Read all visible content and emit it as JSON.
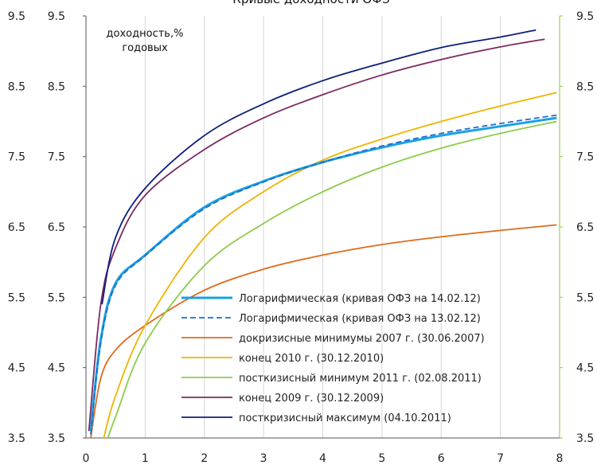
{
  "chart_data": {
    "type": "line",
    "title": "Кривые доходности ОФЗ",
    "y_unit_label_line1": "доходность,%",
    "y_unit_label_line2": "годовых",
    "xlim": [
      0,
      8
    ],
    "ylim": [
      3.5,
      9.5
    ],
    "x_ticks": [
      "0",
      "1",
      "2",
      "3",
      "4",
      "5",
      "6",
      "7",
      "8"
    ],
    "y_ticks_left": [
      "3.5",
      "4.5",
      "5.5",
      "6.5",
      "7.5",
      "8.5",
      "9.5"
    ],
    "y_ticks_right": [
      "3.5",
      "4.5",
      "5.5",
      "6.5",
      "7.5",
      "8.5",
      "9.5"
    ],
    "grid": "vertical",
    "legend_position": "bottom-right",
    "series": [
      {
        "name": "Логарифмическая (кривая ОФЗ на 14.02.12)",
        "color": "#1ba1e2",
        "style": "solid",
        "x": [
          0.08,
          0.25,
          0.5,
          1,
          2,
          3,
          4,
          5,
          6,
          7,
          7.95
        ],
        "y": [
          3.6,
          4.9,
          5.7,
          6.1,
          6.78,
          7.15,
          7.42,
          7.63,
          7.8,
          7.93,
          8.05
        ]
      },
      {
        "name": "Логарифмическая (кривая ОФЗ на 13.02.12)",
        "color": "#1a6fd0",
        "style": "dashed",
        "x": [
          0.08,
          0.25,
          0.5,
          1,
          2,
          3,
          4,
          5,
          6,
          7,
          7.95
        ],
        "y": [
          3.55,
          4.85,
          5.67,
          6.09,
          6.76,
          7.14,
          7.42,
          7.65,
          7.83,
          7.97,
          8.09
        ]
      },
      {
        "name": "докризисные минимумы 2007 г. (30.06.2007)",
        "color": "#e06a1b",
        "style": "solid",
        "x": [
          0.08,
          0.25,
          0.5,
          1,
          2,
          3,
          4,
          5,
          6,
          7,
          7.95
        ],
        "y": [
          3.5,
          4.35,
          4.75,
          5.1,
          5.6,
          5.9,
          6.1,
          6.25,
          6.36,
          6.45,
          6.53
        ]
      },
      {
        "name": "конец 2010 г. (30.12.2010)",
        "color": "#f0b400",
        "style": "solid",
        "x": [
          0.3,
          0.5,
          1,
          2,
          3,
          4,
          5,
          6,
          7,
          7.95
        ],
        "y": [
          3.5,
          4.1,
          5.1,
          6.35,
          7.0,
          7.45,
          7.75,
          8.0,
          8.22,
          8.41
        ]
      },
      {
        "name": "посткизисный минимум 2011 г. (02.08.2011)",
        "color": "#8ccc4a",
        "style": "solid",
        "x": [
          0.37,
          0.5,
          1,
          2,
          3,
          4,
          5,
          6,
          7,
          7.95
        ],
        "y": [
          3.5,
          3.8,
          4.85,
          5.95,
          6.55,
          7.0,
          7.35,
          7.62,
          7.83,
          8.0
        ]
      },
      {
        "name": "конец 2009 г. (30.12.2009)",
        "color": "#7b2a60",
        "style": "solid",
        "x": [
          0.05,
          0.25,
          0.5,
          1,
          2,
          3,
          4,
          5,
          6,
          7,
          7.75
        ],
        "y": [
          3.6,
          5.4,
          6.2,
          6.95,
          7.6,
          8.05,
          8.38,
          8.66,
          8.88,
          9.06,
          9.17
        ]
      },
      {
        "name": "посткризисный максимум (04.10.2011)",
        "color": "#0e1f7a",
        "style": "solid",
        "x": [
          0.27,
          0.5,
          1,
          2,
          3,
          4,
          5,
          6,
          7,
          7.6
        ],
        "y": [
          5.4,
          6.35,
          7.05,
          7.8,
          8.25,
          8.58,
          8.83,
          9.05,
          9.2,
          9.3
        ]
      }
    ]
  }
}
